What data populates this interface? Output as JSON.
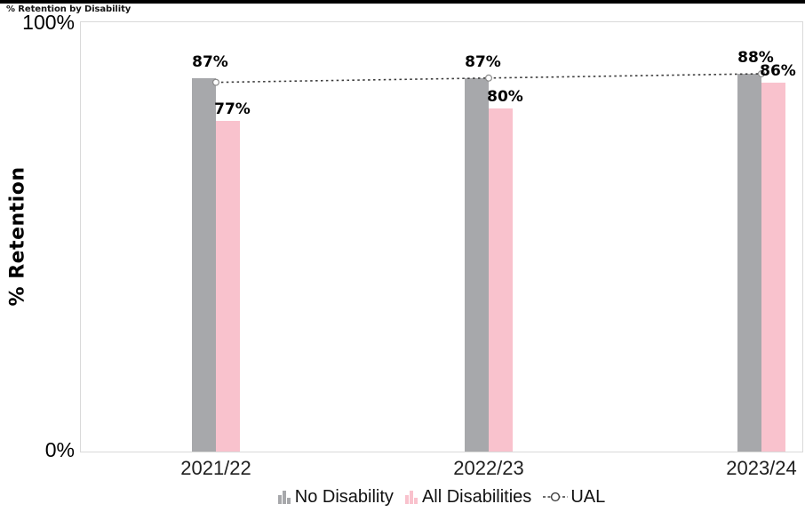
{
  "title": "% Retention by Disability",
  "y_axis": {
    "label": "% Retention",
    "top_tick": "100%",
    "bottom_tick": "0%"
  },
  "x_axis": {
    "categories": [
      "2021/22",
      "2022/23",
      "2023/24"
    ]
  },
  "legend": {
    "items": [
      {
        "label": "No Disability",
        "swatch": "mini-bars",
        "color": "#a7a8ab"
      },
      {
        "label": "All Disabilities",
        "swatch": "mini-bars",
        "color": "#f9c2cd"
      },
      {
        "label": "UAL",
        "swatch": "dashed-line-circle",
        "color": "#3d3d3d"
      }
    ]
  },
  "colors": {
    "no_disability_bar": "#a7a8ab",
    "all_disabilities_bar": "#f9c2cd",
    "ual_line": "#3d3d3d",
    "axis_border": "#d9d9d9"
  },
  "chart_data": {
    "type": "bar",
    "title": "% Retention by Disability",
    "xlabel": "",
    "ylabel": "% Retention",
    "ylim": [
      0,
      100
    ],
    "y_tick_labels": [
      "0%",
      "100%"
    ],
    "grid": false,
    "legend_position": "bottom",
    "categories": [
      "2021/22",
      "2022/23",
      "2023/24"
    ],
    "series": [
      {
        "name": "No Disability",
        "type": "bar",
        "color": "#a7a8ab",
        "values": [
          87,
          87,
          88
        ],
        "data_labels": [
          "87%",
          "87%",
          "88%"
        ]
      },
      {
        "name": "All Disabilities",
        "type": "bar",
        "color": "#f9c2cd",
        "values": [
          77,
          80,
          86
        ],
        "data_labels": [
          "77%",
          "80%",
          "86%"
        ]
      },
      {
        "name": "UAL",
        "type": "line",
        "line_style": "dotted",
        "marker": "open-circle",
        "color": "#3d3d3d",
        "values": [
          86,
          87,
          88
        ],
        "values_estimated": true
      }
    ]
  }
}
